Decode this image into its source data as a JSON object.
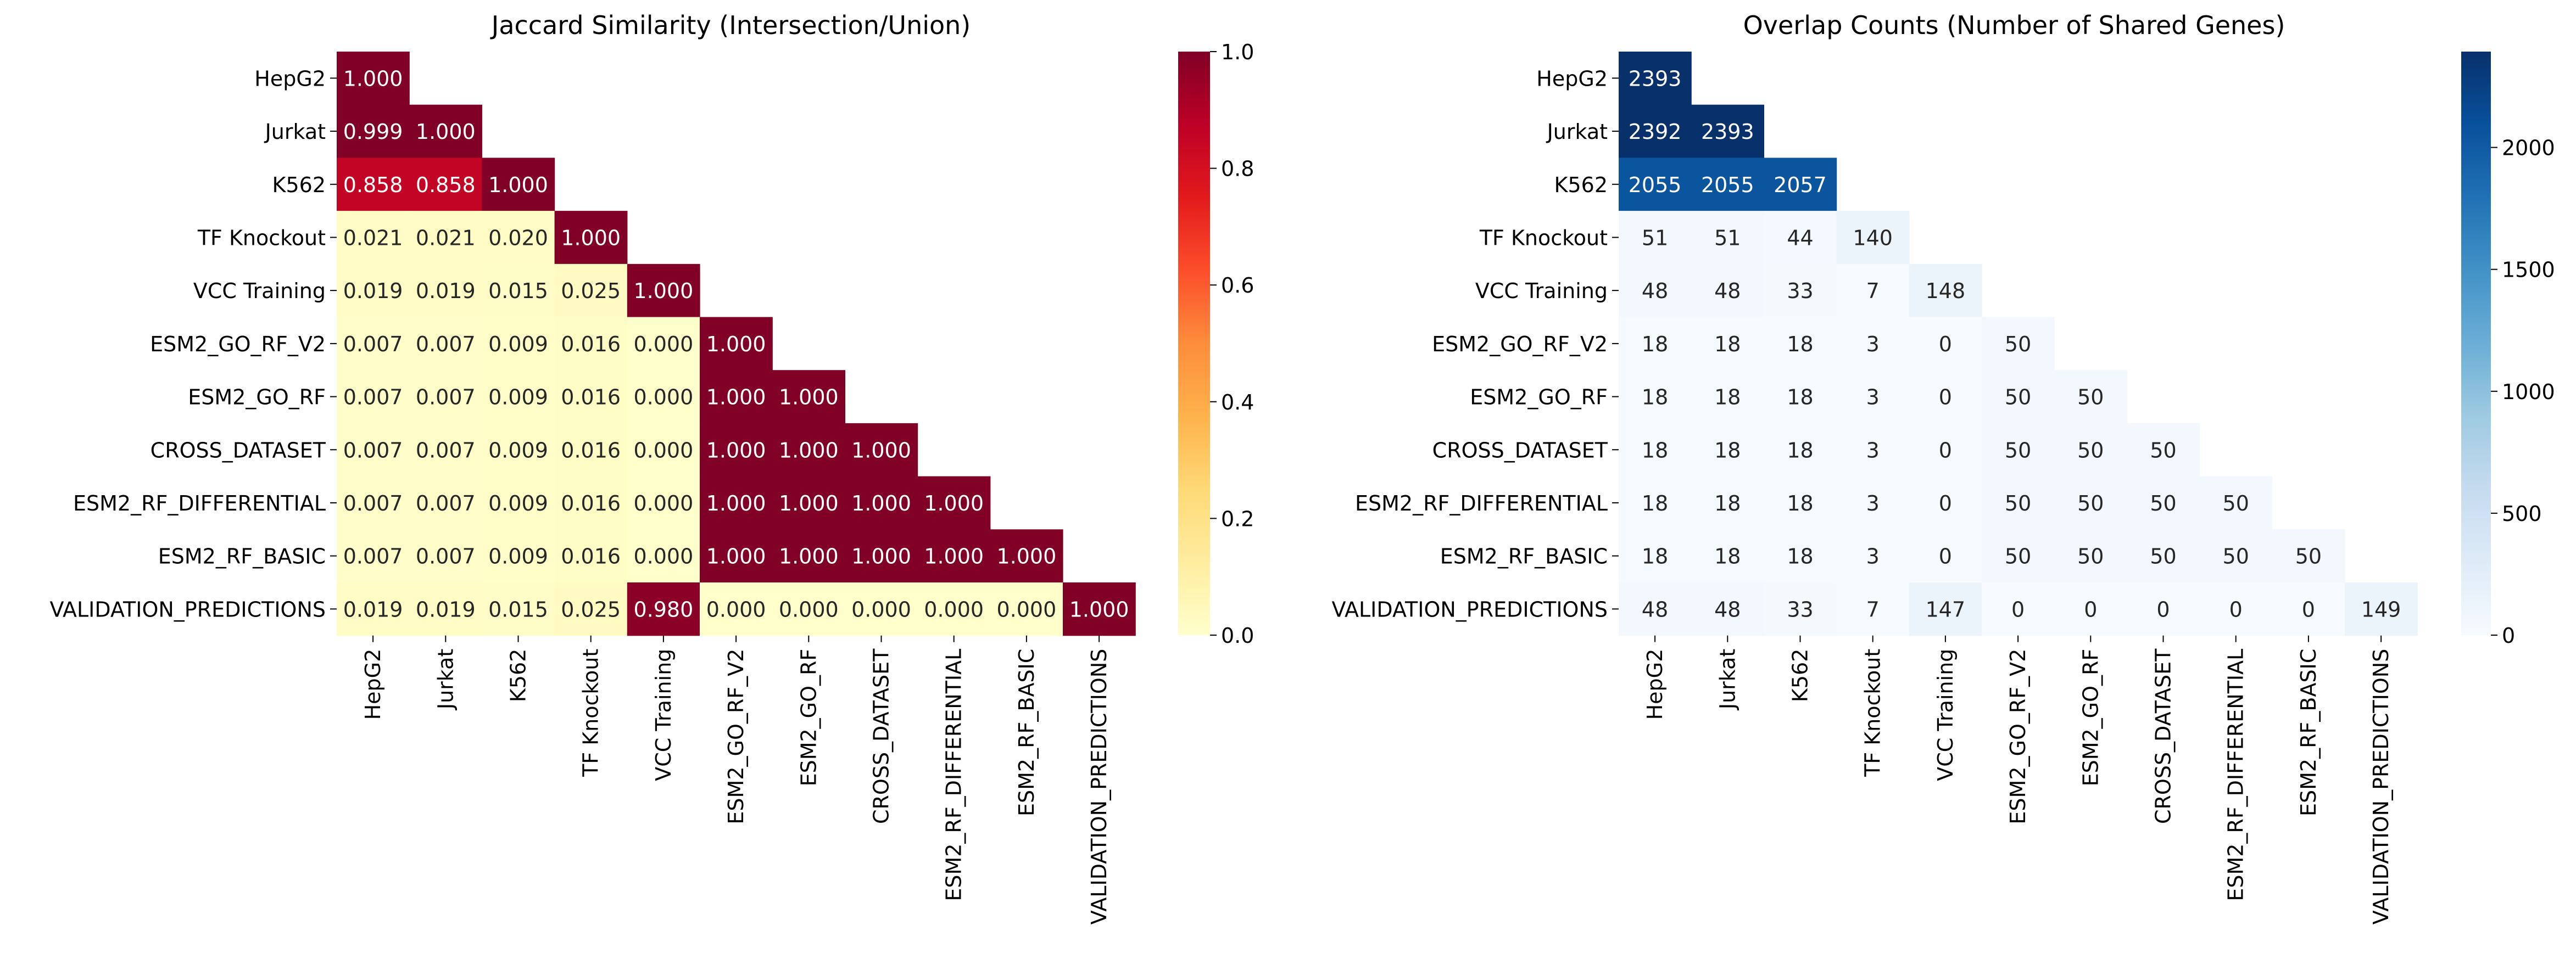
{
  "chart_data": [
    {
      "type": "heatmap",
      "title": "Jaccard Similarity (Intersection/Union)",
      "rows": [
        "HepG2",
        "Jurkat",
        "K562",
        "TF Knockout",
        "VCC Training",
        "ESM2_GO_RF_V2",
        "ESM2_GO_RF",
        "CROSS_DATASET",
        "ESM2_RF_DIFFERENTIAL",
        "ESM2_RF_BASIC",
        "VALIDATION_PREDICTIONS"
      ],
      "columns": [
        "HepG2",
        "Jurkat",
        "K562",
        "TF Knockout",
        "VCC Training",
        "ESM2_GO_RF_V2",
        "ESM2_GO_RF",
        "CROSS_DATASET",
        "ESM2_RF_DIFFERENTIAL",
        "ESM2_RF_BASIC",
        "VALIDATION_PREDICTIONS"
      ],
      "mask": "upper triangle (above diagonal) hidden",
      "values": [
        [
          1.0
        ],
        [
          0.999,
          1.0
        ],
        [
          0.858,
          0.858,
          1.0
        ],
        [
          0.021,
          0.021,
          0.02,
          1.0
        ],
        [
          0.019,
          0.019,
          0.015,
          0.025,
          1.0
        ],
        [
          0.007,
          0.007,
          0.009,
          0.016,
          0.0,
          1.0
        ],
        [
          0.007,
          0.007,
          0.009,
          0.016,
          0.0,
          1.0,
          1.0
        ],
        [
          0.007,
          0.007,
          0.009,
          0.016,
          0.0,
          1.0,
          1.0,
          1.0
        ],
        [
          0.007,
          0.007,
          0.009,
          0.016,
          0.0,
          1.0,
          1.0,
          1.0,
          1.0
        ],
        [
          0.007,
          0.007,
          0.009,
          0.016,
          0.0,
          1.0,
          1.0,
          1.0,
          1.0,
          1.0
        ],
        [
          0.019,
          0.019,
          0.015,
          0.025,
          0.98,
          0.0,
          0.0,
          0.0,
          0.0,
          0.0,
          1.0
        ]
      ],
      "decimals": 3,
      "colormap": "YlOrRd",
      "vmin": 0,
      "vmax": 1,
      "colorbar_ticks": [
        0.0,
        0.2,
        0.4,
        0.6,
        0.8,
        1.0
      ],
      "colorbar_tick_labels": [
        "0.0",
        "0.2",
        "0.4",
        "0.6",
        "0.8",
        "1.0"
      ]
    },
    {
      "type": "heatmap",
      "title": "Overlap Counts (Number of Shared Genes)",
      "rows": [
        "HepG2",
        "Jurkat",
        "K562",
        "TF Knockout",
        "VCC Training",
        "ESM2_GO_RF_V2",
        "ESM2_GO_RF",
        "CROSS_DATASET",
        "ESM2_RF_DIFFERENTIAL",
        "ESM2_RF_BASIC",
        "VALIDATION_PREDICTIONS"
      ],
      "columns": [
        "HepG2",
        "Jurkat",
        "K562",
        "TF Knockout",
        "VCC Training",
        "ESM2_GO_RF_V2",
        "ESM2_GO_RF",
        "CROSS_DATASET",
        "ESM2_RF_DIFFERENTIAL",
        "ESM2_RF_BASIC",
        "VALIDATION_PREDICTIONS"
      ],
      "mask": "upper triangle (above diagonal) hidden",
      "values": [
        [
          2393
        ],
        [
          2392,
          2393
        ],
        [
          2055,
          2055,
          2057
        ],
        [
          51,
          51,
          44,
          140
        ],
        [
          48,
          48,
          33,
          7,
          148
        ],
        [
          18,
          18,
          18,
          3,
          0,
          50
        ],
        [
          18,
          18,
          18,
          3,
          0,
          50,
          50
        ],
        [
          18,
          18,
          18,
          3,
          0,
          50,
          50,
          50
        ],
        [
          18,
          18,
          18,
          3,
          0,
          50,
          50,
          50,
          50
        ],
        [
          18,
          18,
          18,
          3,
          0,
          50,
          50,
          50,
          50,
          50
        ],
        [
          48,
          48,
          33,
          7,
          147,
          0,
          0,
          0,
          0,
          0,
          149
        ]
      ],
      "decimals": 0,
      "colormap": "Blues",
      "vmin": 0,
      "vmax": 2393,
      "colorbar_ticks": [
        0,
        500,
        1000,
        1500,
        2000
      ],
      "colorbar_tick_labels": [
        "0",
        "500",
        "1000",
        "1500",
        "2000"
      ]
    }
  ]
}
